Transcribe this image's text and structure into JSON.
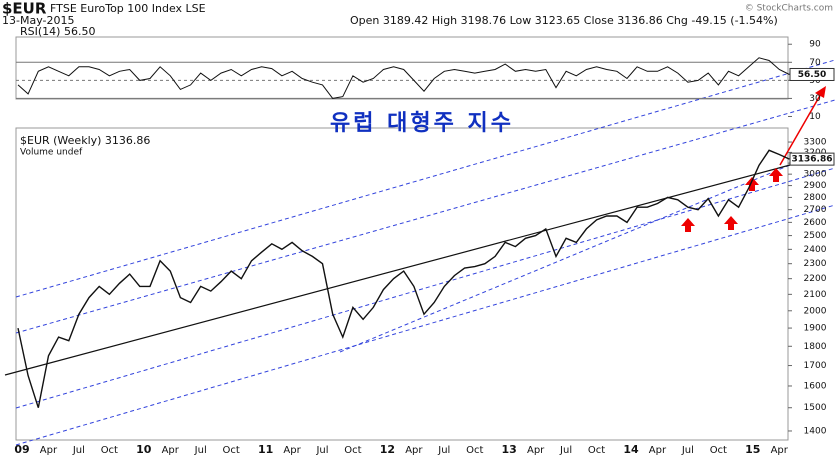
{
  "header": {
    "symbol": "$EUR",
    "name": "FTSE EuroTop 100 Index LSE",
    "date": "13-May-2015",
    "quote": "Open 3189.42  High 3198.76  Low 3123.65  Close 3136.86  Chg -49.15 (-1.54%)",
    "source": "© StockCharts.com"
  },
  "chart_data": [
    {
      "type": "line",
      "title": "RSI(14) 56.50",
      "color": "#111111",
      "last_label": "56.50",
      "ylim": [
        5,
        98
      ],
      "yticks": [
        90,
        70,
        50,
        30,
        10
      ],
      "reference_lines": [
        70,
        50,
        30
      ],
      "categories": [
        "09",
        null,
        null,
        "Apr",
        null,
        null,
        "Jul",
        null,
        null,
        "Oct",
        null,
        null,
        "10",
        null,
        null,
        "Apr",
        null,
        null,
        "Jul",
        null,
        null,
        "Oct",
        null,
        null,
        "11",
        null,
        null,
        "Apr",
        null,
        null,
        "Jul",
        null,
        null,
        "Oct",
        null,
        null,
        "12",
        null,
        null,
        "Apr",
        null,
        null,
        "Jul",
        null,
        null,
        "Oct",
        null,
        null,
        "13",
        null,
        null,
        "Apr",
        null,
        null,
        "Jul",
        null,
        null,
        "Oct",
        null,
        null,
        "14",
        null,
        null,
        "Apr",
        null,
        null,
        "Jul",
        null,
        null,
        "Oct",
        null,
        null,
        "15",
        null,
        null,
        "Apr",
        null
      ],
      "values": [
        45,
        35,
        60,
        65,
        60,
        55,
        65,
        65,
        62,
        55,
        60,
        62,
        50,
        52,
        65,
        55,
        40,
        45,
        58,
        50,
        58,
        62,
        55,
        62,
        65,
        63,
        55,
        60,
        52,
        48,
        45,
        30,
        32,
        55,
        48,
        52,
        62,
        65,
        62,
        50,
        38,
        52,
        60,
        62,
        60,
        58,
        60,
        62,
        68,
        60,
        62,
        60,
        62,
        42,
        60,
        55,
        62,
        65,
        62,
        60,
        52,
        65,
        60,
        60,
        65,
        58,
        48,
        50,
        58,
        45,
        60,
        55,
        65,
        75,
        72,
        62,
        56.5
      ]
    },
    {
      "type": "line",
      "title": "$EUR (Weekly) 3136.86",
      "subtitle": "Volume undef",
      "annotation": "유럽 대형주 지수",
      "color": "#111111",
      "log_scale": true,
      "last_label": "3136.86",
      "ylim": [
        1363,
        3420
      ],
      "yticks": [
        1400,
        1500,
        1600,
        1700,
        1800,
        1900,
        2000,
        2100,
        2200,
        2300,
        2400,
        2500,
        2600,
        2700,
        2800,
        2900,
        3000,
        3100,
        3200,
        3300
      ],
      "categories": [
        "09",
        null,
        null,
        "Apr",
        null,
        null,
        "Jul",
        null,
        null,
        "Oct",
        null,
        null,
        "10",
        null,
        null,
        "Apr",
        null,
        null,
        "Jul",
        null,
        null,
        "Oct",
        null,
        null,
        "11",
        null,
        null,
        "Apr",
        null,
        null,
        "Jul",
        null,
        null,
        "Oct",
        null,
        null,
        "12",
        null,
        null,
        "Apr",
        null,
        null,
        "Jul",
        null,
        null,
        "Oct",
        null,
        null,
        "13",
        null,
        null,
        "Apr",
        null,
        null,
        "Jul",
        null,
        null,
        "Oct",
        null,
        null,
        "14",
        null,
        null,
        "Apr",
        null,
        null,
        "Jul",
        null,
        null,
        "Oct",
        null,
        null,
        "15",
        null,
        null,
        "Apr",
        null
      ],
      "values": [
        1900,
        1650,
        1500,
        1750,
        1850,
        1830,
        1980,
        2080,
        2150,
        2100,
        2170,
        2230,
        2150,
        2150,
        2320,
        2250,
        2080,
        2050,
        2150,
        2120,
        2180,
        2250,
        2200,
        2320,
        2380,
        2440,
        2400,
        2450,
        2390,
        2350,
        2300,
        1980,
        1850,
        2020,
        1950,
        2020,
        2130,
        2200,
        2250,
        2150,
        1980,
        2050,
        2150,
        2220,
        2270,
        2280,
        2300,
        2350,
        2450,
        2420,
        2480,
        2500,
        2550,
        2350,
        2480,
        2450,
        2550,
        2620,
        2650,
        2650,
        2600,
        2720,
        2720,
        2750,
        2800,
        2780,
        2720,
        2700,
        2790,
        2650,
        2780,
        2720,
        2880,
        3080,
        3220,
        3180,
        3136.86
      ]
    }
  ]
}
